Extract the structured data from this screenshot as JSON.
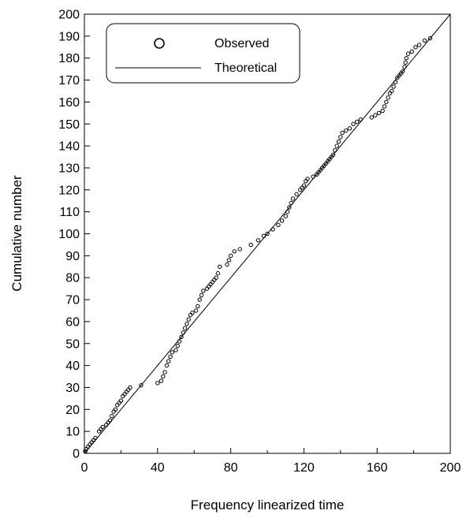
{
  "chart_data": {
    "type": "scatter",
    "xlabel": "Frequency linearized time",
    "ylabel": "Cumulative number",
    "xlim": [
      0,
      200
    ],
    "ylim": [
      0,
      200
    ],
    "x_ticks": [
      0,
      40,
      80,
      120,
      160,
      200
    ],
    "x_tick_labels": [
      "0",
      "40",
      "80",
      "120",
      "160",
      "200"
    ],
    "y_ticks": [
      0,
      10,
      20,
      30,
      40,
      50,
      60,
      70,
      80,
      90,
      100,
      110,
      120,
      130,
      140,
      150,
      160,
      170,
      180,
      190,
      200
    ],
    "y_tick_labels": [
      "0",
      "10",
      "20",
      "30",
      "40",
      "50",
      "60",
      "70",
      "80",
      "90",
      "100",
      "110",
      "120",
      "130",
      "140",
      "150",
      "160",
      "170",
      "180",
      "190",
      "200"
    ],
    "grid": false,
    "legend": {
      "position": "top-left",
      "entries": [
        {
          "label": "Observed",
          "marker": "circle"
        },
        {
          "label": "Theoretical",
          "marker": "line"
        }
      ]
    },
    "series": [
      {
        "name": "Observed",
        "kind": "points",
        "color": "#000000",
        "points": [
          [
            0.5,
            1
          ],
          [
            1,
            2
          ],
          [
            2,
            3
          ],
          [
            3,
            4
          ],
          [
            4,
            5
          ],
          [
            5,
            6
          ],
          [
            6,
            7
          ],
          [
            8,
            10
          ],
          [
            9,
            11
          ],
          [
            10,
            12
          ],
          [
            12,
            13
          ],
          [
            13,
            14
          ],
          [
            14,
            15
          ],
          [
            15,
            17
          ],
          [
            16,
            19
          ],
          [
            17,
            20
          ],
          [
            18,
            22
          ],
          [
            19,
            23
          ],
          [
            20,
            24
          ],
          [
            21,
            26
          ],
          [
            22,
            27
          ],
          [
            23,
            28
          ],
          [
            24,
            29
          ],
          [
            25,
            30
          ],
          [
            31,
            31
          ],
          [
            40,
            32
          ],
          [
            42,
            33
          ],
          [
            43,
            35
          ],
          [
            44,
            37
          ],
          [
            45,
            40
          ],
          [
            46,
            42
          ],
          [
            47,
            44
          ],
          [
            48,
            46
          ],
          [
            50,
            47
          ],
          [
            51,
            49
          ],
          [
            52,
            51
          ],
          [
            53,
            53
          ],
          [
            54,
            55
          ],
          [
            55,
            57
          ],
          [
            56,
            59
          ],
          [
            57,
            61
          ],
          [
            58,
            63
          ],
          [
            59,
            64
          ],
          [
            61,
            65
          ],
          [
            62,
            67
          ],
          [
            63,
            70
          ],
          [
            64,
            72
          ],
          [
            65,
            74
          ],
          [
            67,
            75
          ],
          [
            68,
            76
          ],
          [
            69,
            77
          ],
          [
            70,
            78
          ],
          [
            71,
            79
          ],
          [
            72,
            80
          ],
          [
            73,
            82
          ],
          [
            74,
            85
          ],
          [
            78,
            86
          ],
          [
            79,
            88
          ],
          [
            80,
            90
          ],
          [
            82,
            92
          ],
          [
            85,
            93
          ],
          [
            91,
            95
          ],
          [
            95,
            97
          ],
          [
            98,
            99
          ],
          [
            100,
            100
          ],
          [
            103,
            102
          ],
          [
            106,
            104
          ],
          [
            108,
            106
          ],
          [
            110,
            108
          ],
          [
            111,
            110
          ],
          [
            112,
            112
          ],
          [
            113,
            114
          ],
          [
            114,
            116
          ],
          [
            116,
            118
          ],
          [
            118,
            120
          ],
          [
            119,
            121
          ],
          [
            120,
            122
          ],
          [
            121,
            124
          ],
          [
            122,
            125
          ],
          [
            125,
            126
          ],
          [
            127,
            127
          ],
          [
            128,
            128
          ],
          [
            129,
            129
          ],
          [
            130,
            130
          ],
          [
            131,
            131
          ],
          [
            132,
            132
          ],
          [
            133,
            133
          ],
          [
            134,
            134
          ],
          [
            135,
            135
          ],
          [
            136,
            136
          ],
          [
            137,
            138
          ],
          [
            138,
            140
          ],
          [
            139,
            142
          ],
          [
            140,
            144
          ],
          [
            141,
            146
          ],
          [
            143,
            147
          ],
          [
            145,
            148
          ],
          [
            147,
            150
          ],
          [
            149,
            151
          ],
          [
            151,
            152
          ],
          [
            157,
            153
          ],
          [
            159,
            154
          ],
          [
            161,
            155
          ],
          [
            163,
            156
          ],
          [
            164,
            158
          ],
          [
            165,
            160
          ],
          [
            166,
            162
          ],
          [
            167,
            164
          ],
          [
            168,
            165
          ],
          [
            169,
            167
          ],
          [
            170,
            169
          ],
          [
            171,
            171
          ],
          [
            172,
            172
          ],
          [
            173,
            173
          ],
          [
            174,
            174
          ],
          [
            175,
            176
          ],
          [
            175.5,
            178
          ],
          [
            176,
            180
          ],
          [
            177,
            182
          ],
          [
            179,
            183
          ],
          [
            181,
            185
          ],
          [
            183,
            186
          ],
          [
            186,
            188
          ],
          [
            189,
            189
          ]
        ]
      },
      {
        "name": "Theoretical",
        "kind": "line",
        "color": "#000000",
        "x": [
          0,
          200
        ],
        "y": [
          0,
          200
        ]
      }
    ]
  }
}
